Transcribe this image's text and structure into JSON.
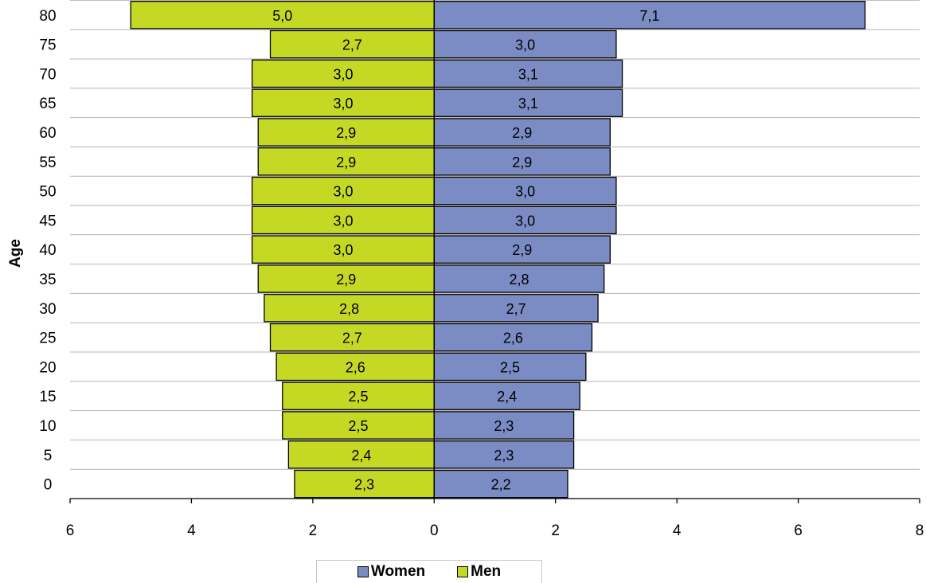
{
  "chart_data": {
    "type": "bar",
    "orientation": "horizontal",
    "layout": "population-pyramid",
    "ylabel": "Age",
    "categories": [
      "0",
      "5",
      "10",
      "15",
      "20",
      "25",
      "30",
      "35",
      "40",
      "45",
      "50",
      "55",
      "60",
      "65",
      "70",
      "75",
      "80"
    ],
    "series": [
      {
        "name": "Men",
        "side": "left",
        "color": "#c5d924",
        "values": [
          2.3,
          2.4,
          2.5,
          2.5,
          2.6,
          2.7,
          2.8,
          2.9,
          3.0,
          3.0,
          3.0,
          2.9,
          2.9,
          3.0,
          3.0,
          2.7,
          5.0
        ],
        "labels": [
          "2,3",
          "2,4",
          "2,5",
          "2,5",
          "2,6",
          "2,7",
          "2,8",
          "2,9",
          "3,0",
          "3,0",
          "3,0",
          "2,9",
          "2,9",
          "3,0",
          "3,0",
          "2,7",
          "5,0"
        ]
      },
      {
        "name": "Women",
        "side": "right",
        "color": "#7b8cc4",
        "values": [
          2.2,
          2.3,
          2.3,
          2.4,
          2.5,
          2.6,
          2.7,
          2.8,
          2.9,
          3.0,
          3.0,
          2.9,
          2.9,
          3.1,
          3.1,
          3.0,
          7.1
        ],
        "labels": [
          "2,2",
          "2,3",
          "2,3",
          "2,4",
          "2,5",
          "2,6",
          "2,7",
          "2,8",
          "2,9",
          "3,0",
          "3,0",
          "2,9",
          "2,9",
          "3,1",
          "3,1",
          "3,0",
          "7,1"
        ]
      }
    ],
    "xlim": [
      -6,
      8
    ],
    "xticks": [
      -6,
      -4,
      -2,
      0,
      2,
      4,
      6,
      8
    ],
    "xtick_labels": [
      "6",
      "4",
      "2",
      "0",
      "2",
      "4",
      "6",
      "8"
    ],
    "grid": "horizontal",
    "legend_position": "bottom-center",
    "legend": [
      {
        "label": "Women",
        "color": "#7b8cc4"
      },
      {
        "label": "Men",
        "color": "#c5d924"
      }
    ]
  }
}
